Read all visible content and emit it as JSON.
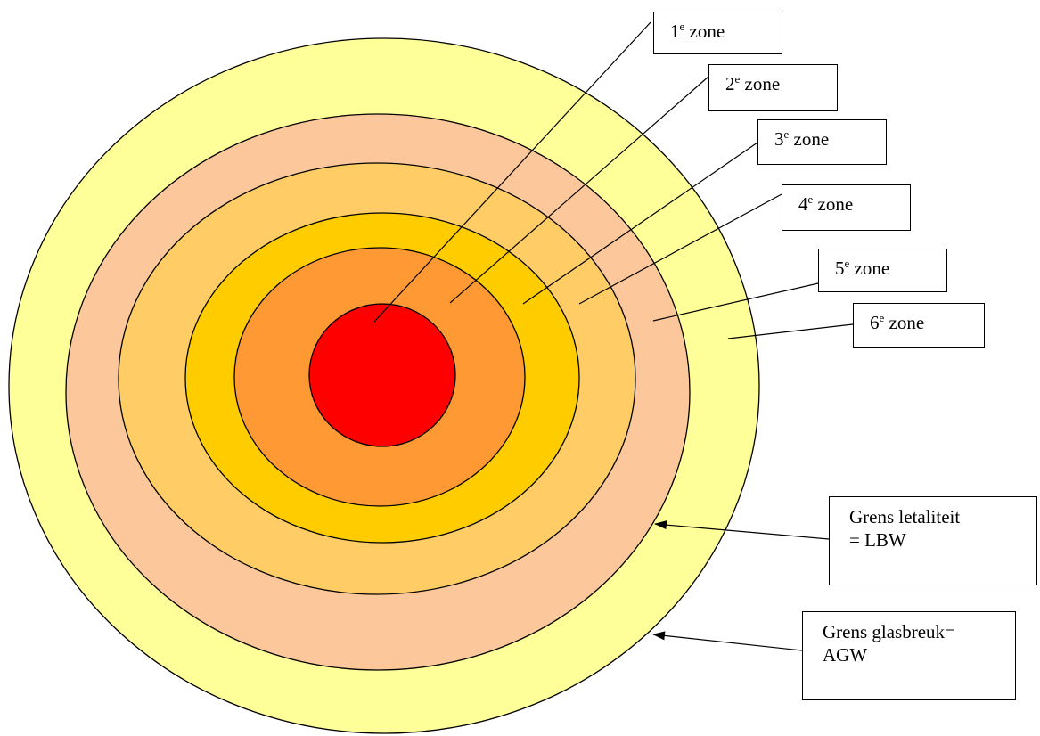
{
  "colors": {
    "zone_1": "#ff0000",
    "zone_2": "#ff9933",
    "zone_3": "#ffcc00",
    "zone_4": "#ffcc66",
    "zone_5": "#fcc89b",
    "zone_6": "#ffff99",
    "outline": "#000000",
    "background": "#ffffff"
  },
  "zones": [
    {
      "number": "1",
      "suffix": "e",
      "word": "zone"
    },
    {
      "number": "2",
      "suffix": "e",
      "word": "zone"
    },
    {
      "number": "3",
      "suffix": "e",
      "word": "zone"
    },
    {
      "number": "4",
      "suffix": "e",
      "word": "zone"
    },
    {
      "number": "5",
      "suffix": "e",
      "word": "zone"
    },
    {
      "number": "6",
      "suffix": "e",
      "word": "zone"
    }
  ],
  "boundaries": {
    "lethality": {
      "line1": "Grens letaliteit",
      "line2": "= LBW"
    },
    "glass_breakage": {
      "line1": "Grens glasbreuk=",
      "line2": "AGW"
    }
  }
}
